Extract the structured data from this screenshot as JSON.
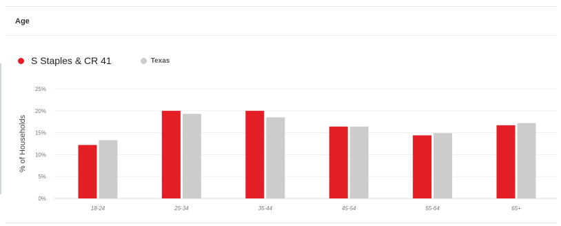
{
  "section": {
    "title": "Age"
  },
  "legend": [
    {
      "name": "S Staples & CR 41",
      "color": "#e31e24"
    },
    {
      "name": "Texas",
      "color": "#cccccc"
    }
  ],
  "chart_data": {
    "type": "bar",
    "title": "",
    "xlabel": "",
    "ylabel": "% of Households",
    "categories": [
      "18-24",
      "25-34",
      "35-44",
      "45-54",
      "55-64",
      "65+"
    ],
    "series": [
      {
        "name": "S Staples & CR 41",
        "color": "#e31e24",
        "values": [
          12.2,
          20.0,
          20.0,
          16.4,
          14.4,
          16.7
        ]
      },
      {
        "name": "Texas",
        "color": "#cccccc",
        "values": [
          13.3,
          19.3,
          18.5,
          16.4,
          14.9,
          17.2
        ]
      }
    ],
    "ylim": [
      0,
      25
    ],
    "yticks": [
      0,
      5,
      10,
      15,
      20,
      25
    ],
    "ytick_labels": [
      "0%",
      "5%",
      "10%",
      "15%",
      "20%",
      "25%"
    ],
    "grid": true,
    "legend_position": "top-left"
  }
}
